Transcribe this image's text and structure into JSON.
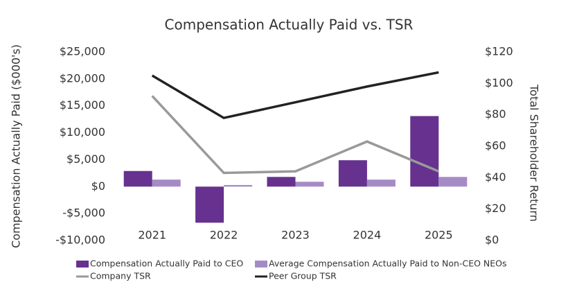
{
  "chart_data": {
    "type": "bar",
    "title": "Compensation Actually Paid vs. TSR",
    "ylabel": "Compensation Actually Paid ($000's)",
    "y2label": "Total Shareholder Return",
    "categories": [
      "2021",
      "2022",
      "2023",
      "2024",
      "2025"
    ],
    "series": [
      {
        "name": "Compensation Actually Paid to CEO",
        "type": "bar",
        "color": "#66318f",
        "values": [
          2900,
          -6700,
          1800,
          4900,
          13100
        ]
      },
      {
        "name": "Average Compensation Actually Paid to Non-CEO NEOs",
        "type": "bar",
        "color": "#a58bc6",
        "values": [
          1300,
          300,
          900,
          1300,
          1800
        ]
      },
      {
        "name": "Company TSR",
        "type": "line",
        "axis": "y2",
        "color": "#999999",
        "values": [
          92,
          43,
          44,
          63,
          44
        ]
      },
      {
        "name": "Peer Group TSR",
        "type": "line",
        "axis": "y2",
        "color": "#222222",
        "values": [
          105,
          78,
          88,
          98,
          107
        ]
      }
    ],
    "ylim": [
      -10000,
      25000
    ],
    "yticks": [
      {
        "value": -10000,
        "label": "-$10,000"
      },
      {
        "value": -5000,
        "label": "-$5,000"
      },
      {
        "value": 0,
        "label": "$0"
      },
      {
        "value": 5000,
        "label": "$5,000"
      },
      {
        "value": 10000,
        "label": "$10,000"
      },
      {
        "value": 15000,
        "label": "$15,000"
      },
      {
        "value": 20000,
        "label": "$20,000"
      },
      {
        "value": 25000,
        "label": "$25,000"
      }
    ],
    "y2lim": [
      0,
      120
    ],
    "y2ticks": [
      {
        "value": 0,
        "label": "$0"
      },
      {
        "value": 20,
        "label": "$20"
      },
      {
        "value": 40,
        "label": "$40"
      },
      {
        "value": 60,
        "label": "$60"
      },
      {
        "value": 80,
        "label": "$80"
      },
      {
        "value": 100,
        "label": "$100"
      },
      {
        "value": 120,
        "label": "$120"
      }
    ],
    "grid": false
  }
}
